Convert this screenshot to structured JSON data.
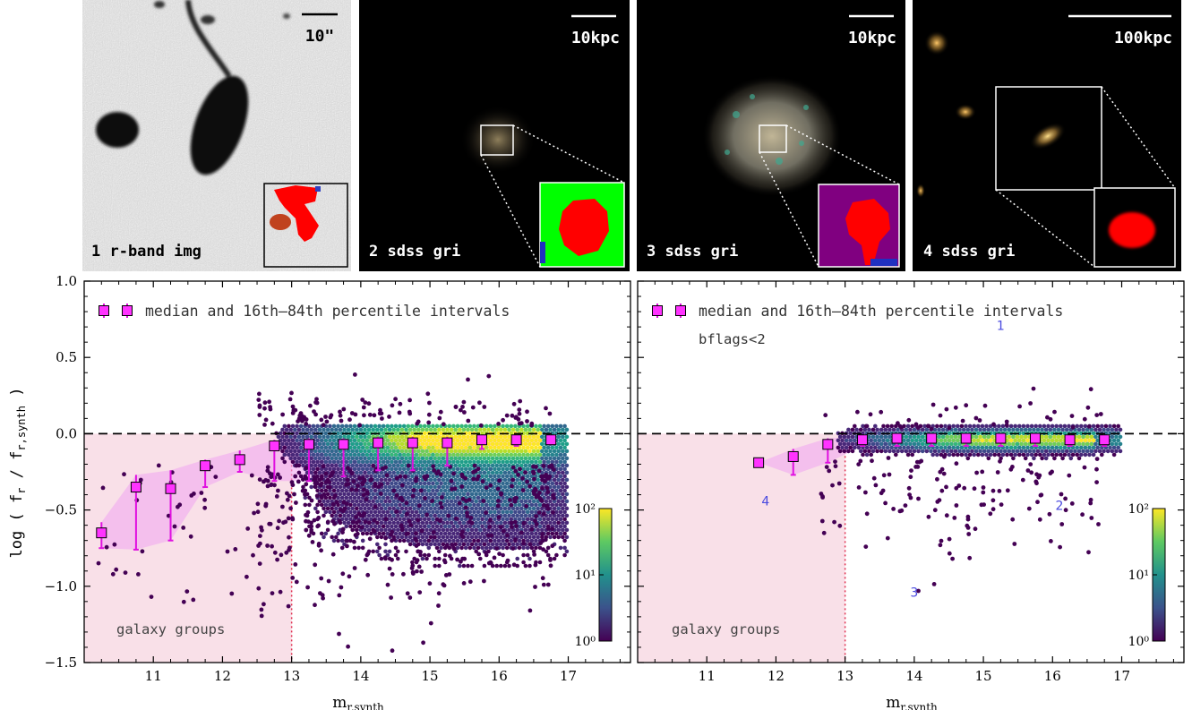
{
  "panels": [
    {
      "label": "1 r-band img",
      "scale": "10\"",
      "style": "gray"
    },
    {
      "label": "2 sdss gri",
      "scale": "10kpc",
      "style": "sdss2",
      "inset_bg": "#00ff00"
    },
    {
      "label": "3 sdss gri",
      "scale": "10kpc",
      "style": "sdss3",
      "inset_bg": "#800080"
    },
    {
      "label": "4 sdss gri",
      "scale": "100kpc",
      "style": "sdss4",
      "inset_bg": "#000000"
    }
  ],
  "chart_data": [
    {
      "type": "scatter",
      "xlabel": "m",
      "xlabel_sub": "r,synth",
      "ylabel": "log ( f",
      "ylabel_sub1": "r",
      "ylabel_mid": " / f",
      "ylabel_sub2": "r,synth",
      "ylabel_end": " )",
      "xlim": [
        10.0,
        17.9
      ],
      "ylim": [
        -1.5,
        1.0
      ],
      "xticks": [
        "11",
        "12",
        "13",
        "14",
        "15",
        "16",
        "17"
      ],
      "yticks": [
        "1.0",
        "0.5",
        "0.0",
        "−0.5",
        "−1.0",
        "−1.5"
      ],
      "legend": "median and 16th–84th percentile intervals",
      "region_label": "galaxy groups",
      "region": {
        "x_max": 13.0,
        "y_max": 0.0
      },
      "colorbar": {
        "ticks": [
          "10²",
          "10¹",
          "10⁰"
        ],
        "log_range": [
          0,
          2
        ]
      },
      "medians": [
        {
          "x": 10.25,
          "y": -0.65,
          "lo": -0.75,
          "hi": -0.58
        },
        {
          "x": 10.75,
          "y": -0.35,
          "lo": -0.76,
          "hi": -0.27
        },
        {
          "x": 11.25,
          "y": -0.36,
          "lo": -0.7,
          "hi": -0.24
        },
        {
          "x": 11.75,
          "y": -0.21,
          "lo": -0.35,
          "hi": -0.17
        },
        {
          "x": 12.25,
          "y": -0.17,
          "lo": -0.25,
          "hi": -0.11
        },
        {
          "x": 12.75,
          "y": -0.08,
          "lo": -0.31,
          "hi": -0.04
        },
        {
          "x": 13.25,
          "y": -0.07,
          "lo": -0.31,
          "hi": -0.03
        },
        {
          "x": 13.75,
          "y": -0.07,
          "lo": -0.28,
          "hi": -0.03
        },
        {
          "x": 14.25,
          "y": -0.06,
          "lo": -0.24,
          "hi": -0.02
        },
        {
          "x": 14.75,
          "y": -0.06,
          "lo": -0.24,
          "hi": -0.02
        },
        {
          "x": 15.25,
          "y": -0.06,
          "lo": -0.21,
          "hi": -0.02
        },
        {
          "x": 15.75,
          "y": -0.04,
          "lo": -0.1,
          "hi": -0.01
        },
        {
          "x": 16.25,
          "y": -0.04,
          "lo": -0.08,
          "hi": -0.01
        },
        {
          "x": 16.75,
          "y": -0.04,
          "lo": -0.07,
          "hi": -0.01
        }
      ]
    },
    {
      "type": "scatter",
      "xlabel": "m",
      "xlabel_sub": "r,synth",
      "xlim": [
        10.0,
        17.9
      ],
      "ylim": [
        -1.5,
        1.0
      ],
      "xticks": [
        "11",
        "12",
        "13",
        "14",
        "15",
        "16",
        "17"
      ],
      "legend": "median and 16th–84th percentile intervals",
      "annotation": "bflags<2",
      "region_label": "galaxy groups",
      "region": {
        "x_max": 13.0,
        "y_max": 0.0
      },
      "colorbar": {
        "ticks": [
          "10²",
          "10¹",
          "10⁰"
        ],
        "log_range": [
          0,
          2
        ]
      },
      "marked_points": [
        {
          "label": "1",
          "x": 15.25,
          "y": 0.68
        },
        {
          "label": "2",
          "x": 16.1,
          "y": -0.5
        },
        {
          "label": "3",
          "x": 14.0,
          "y": -1.07
        },
        {
          "label": "4",
          "x": 11.85,
          "y": -0.47
        }
      ],
      "medians": [
        {
          "x": 11.75,
          "y": -0.19,
          "lo": -0.19,
          "hi": -0.19
        },
        {
          "x": 12.25,
          "y": -0.15,
          "lo": -0.27,
          "hi": -0.1
        },
        {
          "x": 12.75,
          "y": -0.07,
          "lo": -0.19,
          "hi": -0.03
        },
        {
          "x": 13.25,
          "y": -0.04,
          "lo": -0.08,
          "hi": -0.02
        },
        {
          "x": 13.75,
          "y": -0.03,
          "lo": -0.08,
          "hi": -0.01
        },
        {
          "x": 14.25,
          "y": -0.03,
          "lo": -0.08,
          "hi": -0.01
        },
        {
          "x": 14.75,
          "y": -0.03,
          "lo": -0.08,
          "hi": -0.01
        },
        {
          "x": 15.25,
          "y": -0.03,
          "lo": -0.08,
          "hi": -0.01
        },
        {
          "x": 15.75,
          "y": -0.03,
          "lo": -0.08,
          "hi": -0.01
        },
        {
          "x": 16.25,
          "y": -0.04,
          "lo": -0.08,
          "hi": -0.01
        },
        {
          "x": 16.75,
          "y": -0.04,
          "lo": -0.08,
          "hi": -0.01
        }
      ]
    }
  ]
}
